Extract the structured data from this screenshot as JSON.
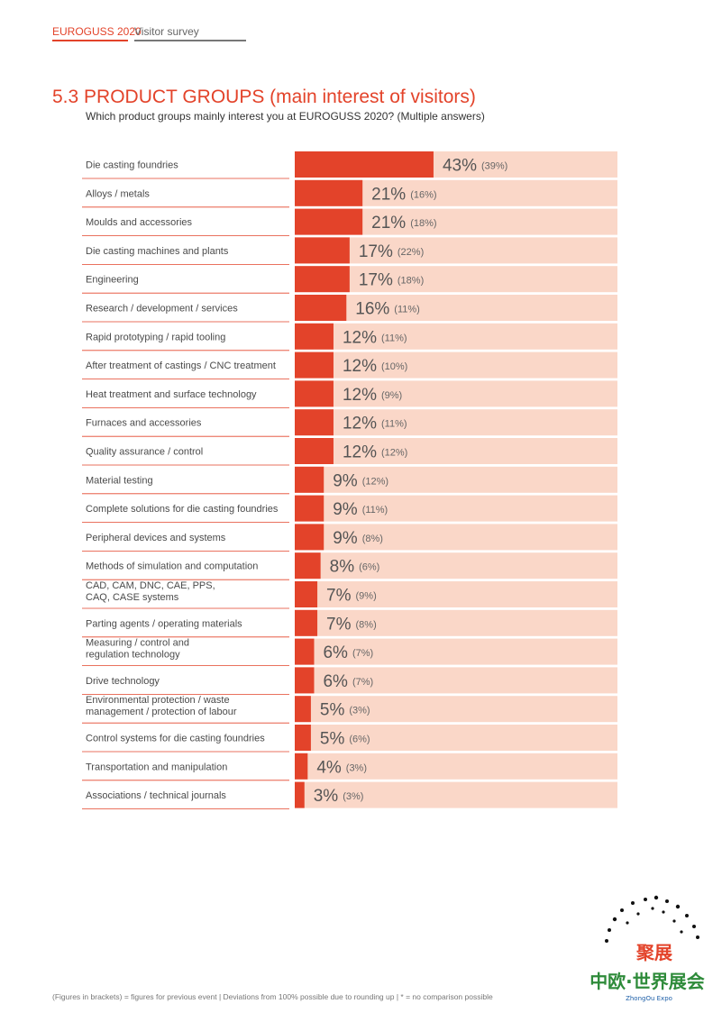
{
  "header": {
    "brand": "EUROGUSS 2020",
    "section": "Visitor survey"
  },
  "title": "5.3  PRODUCT GROUPS (main interest of visitors)",
  "subtitle": "Which product groups mainly interest you at EUROGUSS 2020? (Multiple answers)",
  "colors": {
    "accent": "#e3432a",
    "bar_bg": "#fad7c8",
    "divider": "#e3432a"
  },
  "chart_data": {
    "type": "bar",
    "orientation": "horizontal",
    "xlim": [
      0,
      100
    ],
    "categories": [
      "Die casting foundries",
      "Alloys / metals",
      "Moulds and accessories",
      "Die casting machines and plants",
      "Engineering",
      "Research / development / services",
      "Rapid prototyping / rapid tooling",
      "After treatment of castings / CNC treatment",
      "Heat treatment and surface technology",
      "Furnaces and accessories",
      "Quality assurance / control",
      "Material testing",
      "Complete solutions for die casting foundries",
      "Peripheral devices and systems",
      "Methods of simulation and computation",
      "CAD, CAM, DNC, CAE, PPS,\nCAQ, CASE systems",
      "Parting agents / operating materials",
      "Measuring / control and\nregulation technology",
      "Drive technology",
      "Environmental protection / waste\nmanagement / protection of labour",
      "Control systems for die casting foundries",
      "Transportation and manipulation",
      "Associations / technical journals"
    ],
    "series": [
      {
        "name": "EUROGUSS 2020",
        "values": [
          43,
          21,
          21,
          17,
          17,
          16,
          12,
          12,
          12,
          12,
          12,
          9,
          9,
          9,
          8,
          7,
          7,
          6,
          6,
          5,
          5,
          4,
          3
        ]
      },
      {
        "values": [
          39,
          16,
          18,
          22,
          18,
          11,
          11,
          10,
          9,
          11,
          12,
          12,
          11,
          8,
          6,
          9,
          8,
          7,
          7,
          3,
          6,
          3,
          3
        ]
      }
    ],
    "value_labels": [
      "43%",
      "21%",
      "21%",
      "17%",
      "17%",
      "16%",
      "12%",
      "12%",
      "12%",
      "12%",
      "12%",
      "9%",
      "9%",
      "9%",
      "8%",
      "7%",
      "7%",
      "6%",
      "6%",
      "5%",
      "5%",
      "4%",
      "3%"
    ],
    "previous_labels": [
      "(39%)",
      "(16%)",
      "(18%)",
      "(22%)",
      "(18%)",
      "(11%)",
      "(11%)",
      "(10%)",
      "(9%)",
      "(11%)",
      "(12%)",
      "(12%)",
      "(11%)",
      "(8%)",
      "(6%)",
      "(9%)",
      "(8%)",
      "(7%)",
      "(7%)",
      "(3%)",
      "(6%)",
      "(3%)",
      "(3%)"
    ]
  },
  "footnote": "(Figures in brackets) = figures for previous event | Deviations from 100% possible due to rounding up | * = no comparison possible",
  "logo": {
    "text_top": "聚展",
    "text_main": "中欧·世界展会",
    "text_small": "ZhongOu Expo"
  }
}
